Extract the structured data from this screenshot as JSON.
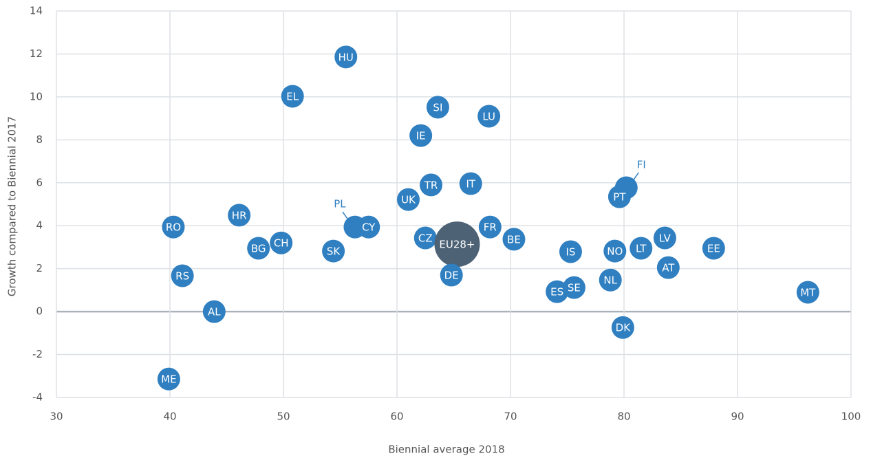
{
  "chart_data": {
    "type": "scatter",
    "xlabel": "Biennial average 2018",
    "ylabel": "Growth compared to Biennial 2017",
    "xlim": [
      30,
      100
    ],
    "xticks": [
      30,
      40,
      50,
      60,
      70,
      80,
      90,
      100
    ],
    "ylim": [
      -4,
      14
    ],
    "yticks": [
      -4,
      -2,
      0,
      2,
      4,
      6,
      8,
      10,
      12,
      14
    ],
    "grid": true,
    "color": "#2f7fc1",
    "points": [
      {
        "label": "HU",
        "x": 55.5,
        "y": 11.86
      },
      {
        "label": "EL",
        "x": 50.8,
        "y": 10.03
      },
      {
        "label": "SI",
        "x": 63.6,
        "y": 9.52
      },
      {
        "label": "LU",
        "x": 68.1,
        "y": 9.1
      },
      {
        "label": "IE",
        "x": 62.1,
        "y": 8.2
      },
      {
        "label": "FI",
        "x": 80.2,
        "y": 5.77,
        "callout": "upper-right"
      },
      {
        "label": "PT",
        "x": 79.6,
        "y": 5.35
      },
      {
        "label": "IT",
        "x": 66.5,
        "y": 5.96
      },
      {
        "label": "TR",
        "x": 63.0,
        "y": 5.9
      },
      {
        "label": "UK",
        "x": 61.0,
        "y": 5.22
      },
      {
        "label": "HR",
        "x": 46.1,
        "y": 4.49
      },
      {
        "label": "RO",
        "x": 40.3,
        "y": 3.94
      },
      {
        "label": "PL",
        "x": 56.3,
        "y": 3.94,
        "callout": "upper-left"
      },
      {
        "label": "CY",
        "x": 57.5,
        "y": 3.94
      },
      {
        "label": "FR",
        "x": 68.2,
        "y": 3.94
      },
      {
        "label": "CZ",
        "x": 62.5,
        "y": 3.43
      },
      {
        "label": "BE",
        "x": 70.3,
        "y": 3.37
      },
      {
        "label": "EU28+",
        "x": 65.3,
        "y": 3.14,
        "color": "#4d6275"
      },
      {
        "label": "LV",
        "x": 83.6,
        "y": 3.43
      },
      {
        "label": "CH",
        "x": 49.8,
        "y": 3.2
      },
      {
        "label": "BG",
        "x": 47.8,
        "y": 2.95
      },
      {
        "label": "EE",
        "x": 87.9,
        "y": 2.95
      },
      {
        "label": "LT",
        "x": 81.5,
        "y": 2.95
      },
      {
        "label": "NO",
        "x": 79.2,
        "y": 2.82
      },
      {
        "label": "IS",
        "x": 75.3,
        "y": 2.79
      },
      {
        "label": "SK",
        "x": 54.4,
        "y": 2.82
      },
      {
        "label": "AT",
        "x": 83.9,
        "y": 2.05
      },
      {
        "label": "RS",
        "x": 41.1,
        "y": 1.67
      },
      {
        "label": "DE",
        "x": 64.8,
        "y": 1.7
      },
      {
        "label": "NL",
        "x": 78.8,
        "y": 1.47
      },
      {
        "label": "SE",
        "x": 75.6,
        "y": 1.12
      },
      {
        "label": "ES",
        "x": 74.1,
        "y": 0.93
      },
      {
        "label": "MT",
        "x": 96.2,
        "y": 0.9
      },
      {
        "label": "AL",
        "x": 43.9,
        "y": 0.0
      },
      {
        "label": "DK",
        "x": 79.9,
        "y": -0.74
      },
      {
        "label": "ME",
        "x": 39.9,
        "y": -3.14
      }
    ]
  }
}
